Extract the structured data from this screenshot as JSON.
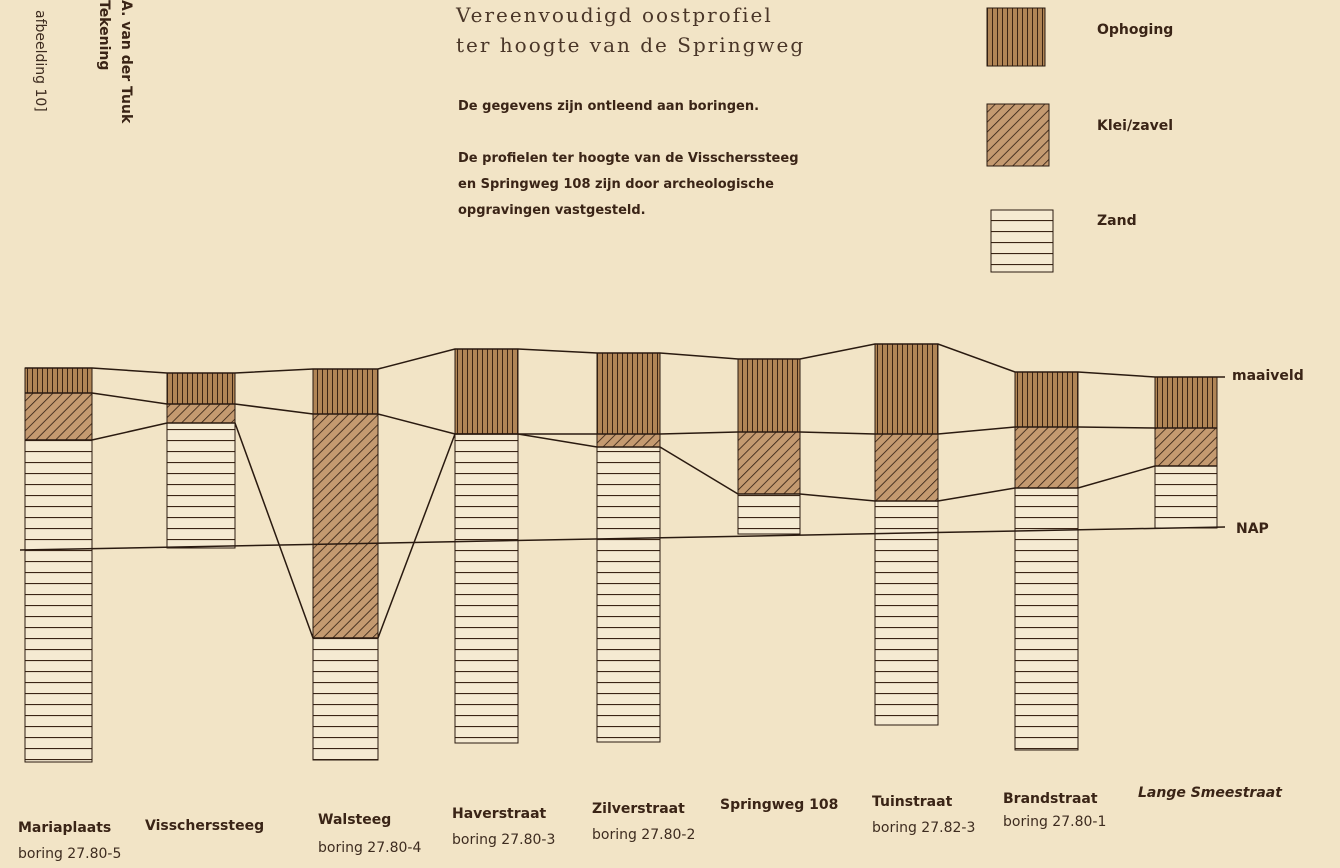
{
  "side_notes": [
    "afbeelding 10]",
    "Tekening",
    "A. van der Tuuk"
  ],
  "title": [
    "Vereenvoudigd oostprofiel",
    "ter hoogte van de Springweg"
  ],
  "notes": [
    "De gegevens zijn ontleend aan boringen.",
    "De profielen ter hoogte van de Visscherssteeg",
    "en Springweg 108 zijn door archeologische",
    "opgravingen vastgesteld."
  ],
  "legend": [
    "Ophoging",
    "Klei/zavel",
    "Zand"
  ],
  "levels": [
    "maaiveld",
    "NAP"
  ],
  "columns": [
    {
      "name": "Mariaplaats",
      "boring": "boring 27.80-5"
    },
    {
      "name": "Visscherssteeg"
    },
    {
      "name": "Walsteeg",
      "boring": "boring 27.80-4"
    },
    {
      "name": "Haverstraat",
      "boring": "boring 27.80-3"
    },
    {
      "name": "Zilverstraat",
      "boring": "boring 27.80-2"
    },
    {
      "name": "Springweg 108"
    },
    {
      "name": "Tuinstraat",
      "boring": "boring 27.82-3"
    },
    {
      "name": "Brandstraat",
      "boring": "boring 27.80-1"
    },
    {
      "name": "Lange Smeestraat"
    }
  ]
}
